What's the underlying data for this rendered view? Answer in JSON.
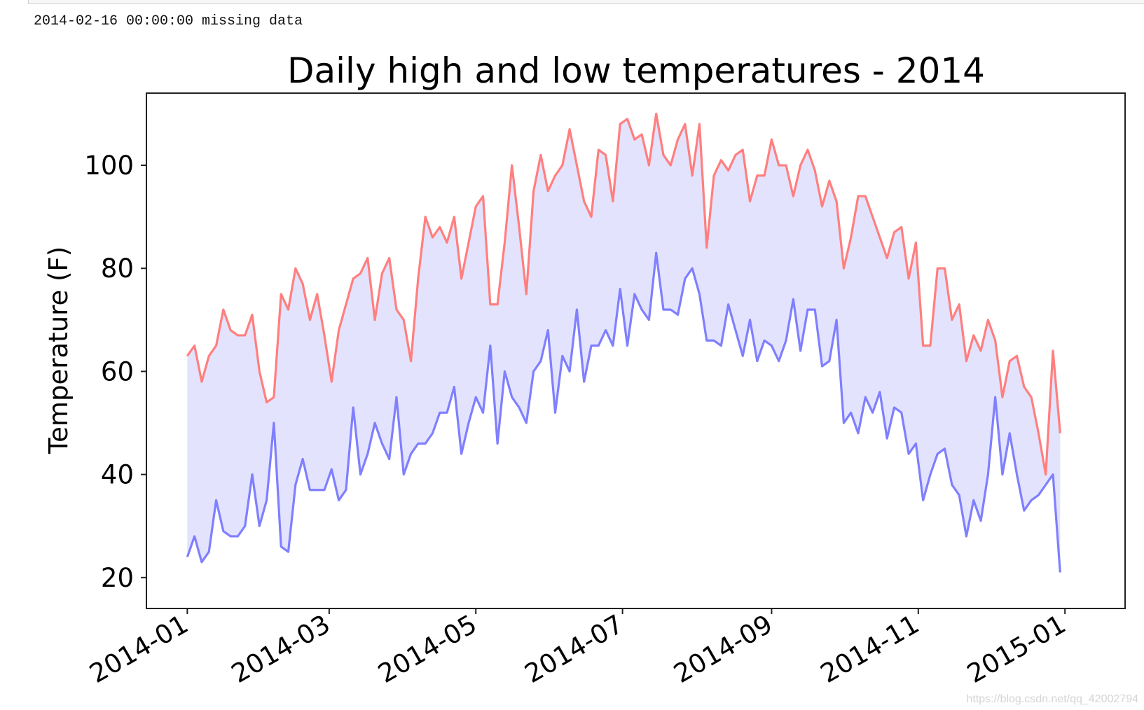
{
  "output": {
    "message": "2014-02-16 00:00:00 missing data"
  },
  "watermark": "https://blog.csdn.net/qq_42002794",
  "chart_data": {
    "type": "line",
    "title": "Daily high and low temperatures - 2014",
    "xlabel": "",
    "ylabel": "Temperature (F)",
    "ylim": [
      14,
      114
    ],
    "xlim_days": [
      -17,
      390
    ],
    "start_date": "2014-01-01",
    "step_days": 3,
    "grid": false,
    "fill_between": true,
    "colors": {
      "high": "#ff7f7f",
      "low": "#7f7fff",
      "fill": "#e3e3fd"
    },
    "yticks": [
      20,
      40,
      60,
      80,
      100
    ],
    "xticks": [
      {
        "label": "2014-01",
        "day": 0
      },
      {
        "label": "2014-03",
        "day": 59
      },
      {
        "label": "2014-05",
        "day": 120
      },
      {
        "label": "2014-07",
        "day": 181
      },
      {
        "label": "2014-09",
        "day": 243
      },
      {
        "label": "2014-11",
        "day": 304
      },
      {
        "label": "2015-01",
        "day": 365
      }
    ],
    "series": [
      {
        "name": "highs",
        "values": [
          63,
          65,
          58,
          63,
          65,
          72,
          68,
          67,
          67,
          71,
          60,
          54,
          55,
          75,
          72,
          80,
          77,
          70,
          75,
          67,
          58,
          68,
          73,
          78,
          79,
          82,
          70,
          79,
          82,
          72,
          70,
          62,
          78,
          90,
          86,
          88,
          85,
          90,
          78,
          85,
          92,
          94,
          73,
          73,
          85,
          100,
          88,
          75,
          95,
          102,
          95,
          98,
          100,
          107,
          100,
          93,
          90,
          103,
          102,
          93,
          108,
          109,
          105,
          106,
          100,
          110,
          102,
          100,
          105,
          108,
          98,
          108,
          84,
          98,
          101,
          99,
          102,
          103,
          93,
          98,
          98,
          105,
          100,
          100,
          94,
          100,
          103,
          99,
          92,
          97,
          93,
          80,
          86,
          94,
          94,
          90,
          86,
          82,
          87,
          88,
          78,
          85,
          65,
          65,
          80,
          80,
          70,
          73,
          62,
          67,
          64,
          70,
          66,
          55,
          62,
          63,
          57,
          55,
          48,
          40,
          64,
          48
        ]
      },
      {
        "name": "lows",
        "values": [
          24,
          28,
          23,
          25,
          35,
          29,
          28,
          28,
          30,
          40,
          30,
          35,
          50,
          26,
          25,
          38,
          43,
          37,
          37,
          37,
          41,
          35,
          37,
          53,
          40,
          44,
          50,
          46,
          43,
          55,
          40,
          44,
          46,
          46,
          48,
          52,
          52,
          57,
          44,
          50,
          55,
          52,
          65,
          46,
          60,
          55,
          53,
          50,
          60,
          62,
          68,
          52,
          63,
          60,
          72,
          58,
          65,
          65,
          68,
          65,
          76,
          65,
          75,
          72,
          70,
          83,
          72,
          72,
          71,
          78,
          80,
          75,
          66,
          66,
          65,
          73,
          68,
          63,
          70,
          62,
          66,
          65,
          62,
          66,
          74,
          64,
          72,
          72,
          61,
          62,
          70,
          50,
          52,
          48,
          55,
          52,
          56,
          47,
          53,
          52,
          44,
          46,
          35,
          40,
          44,
          45,
          38,
          36,
          28,
          35,
          31,
          40,
          55,
          40,
          48,
          40,
          33,
          35,
          36,
          38,
          40,
          21
        ]
      }
    ]
  }
}
